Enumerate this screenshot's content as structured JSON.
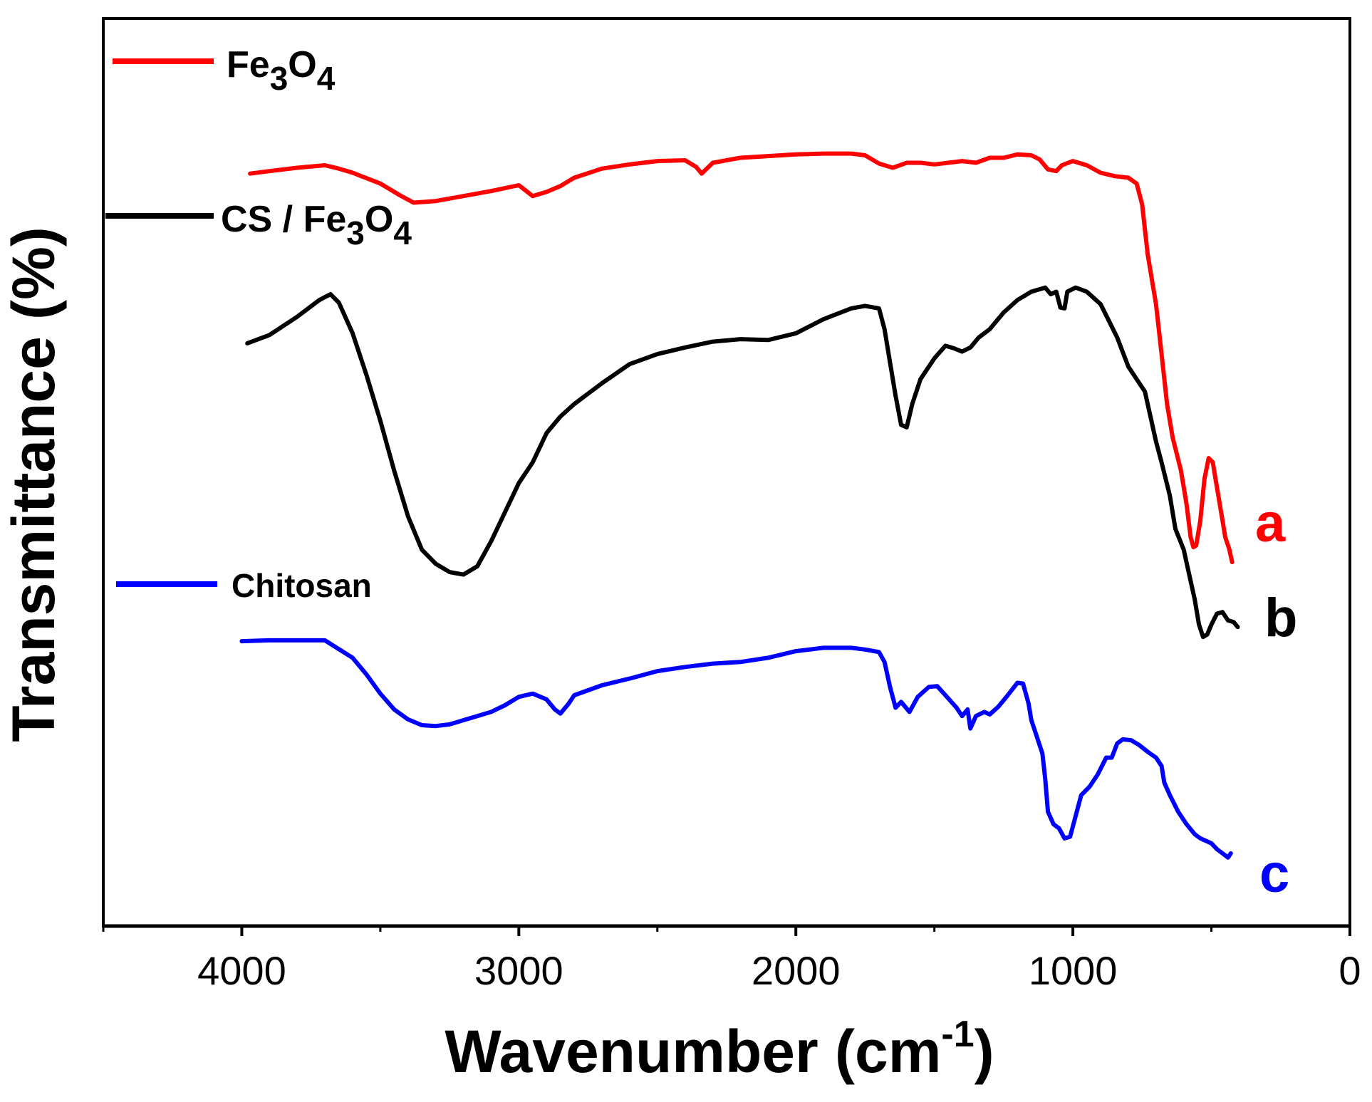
{
  "chart_data": {
    "type": "line",
    "title": "",
    "xlabel": {
      "main": "Wavenumber (cm",
      "sup": "-1",
      "end": ")"
    },
    "ylabel": "Transmittance (%)",
    "xlim": [
      4500,
      0
    ],
    "ylim": [
      0,
      100
    ],
    "x_ticks": [
      4000,
      3000,
      2000,
      1000,
      0
    ],
    "x_tick_labels": [
      "4000",
      "3000",
      "2000",
      "1000",
      "0"
    ],
    "y_ticks_shown": false,
    "series": [
      {
        "name": "Fe3O4",
        "legend": {
          "base1": "Fe",
          "sub1": "3",
          "base2": "O",
          "sub2": "4"
        },
        "tag": "a",
        "color": "#ff0000",
        "points": [
          [
            3970,
            87.7
          ],
          [
            3900,
            88.0
          ],
          [
            3800,
            88.4
          ],
          [
            3700,
            88.7
          ],
          [
            3650,
            88.3
          ],
          [
            3600,
            87.8
          ],
          [
            3500,
            86.5
          ],
          [
            3430,
            85.1
          ],
          [
            3380,
            84.2
          ],
          [
            3300,
            84.4
          ],
          [
            3200,
            85.0
          ],
          [
            3100,
            85.6
          ],
          [
            3000,
            86.3
          ],
          [
            2950,
            85.0
          ],
          [
            2900,
            85.5
          ],
          [
            2850,
            86.2
          ],
          [
            2800,
            87.2
          ],
          [
            2700,
            88.3
          ],
          [
            2600,
            88.8
          ],
          [
            2500,
            89.2
          ],
          [
            2400,
            89.3
          ],
          [
            2360,
            88.5
          ],
          [
            2340,
            87.7
          ],
          [
            2300,
            89.0
          ],
          [
            2200,
            89.6
          ],
          [
            2100,
            89.8
          ],
          [
            2000,
            90.0
          ],
          [
            1900,
            90.1
          ],
          [
            1800,
            90.1
          ],
          [
            1750,
            89.9
          ],
          [
            1700,
            88.9
          ],
          [
            1650,
            88.4
          ],
          [
            1600,
            89.0
          ],
          [
            1550,
            89.0
          ],
          [
            1500,
            88.8
          ],
          [
            1450,
            89.0
          ],
          [
            1400,
            89.2
          ],
          [
            1350,
            89.0
          ],
          [
            1300,
            89.6
          ],
          [
            1250,
            89.6
          ],
          [
            1200,
            90.0
          ],
          [
            1150,
            89.9
          ],
          [
            1120,
            89.4
          ],
          [
            1090,
            88.2
          ],
          [
            1060,
            88.0
          ],
          [
            1040,
            88.7
          ],
          [
            1000,
            89.2
          ],
          [
            950,
            88.7
          ],
          [
            900,
            87.8
          ],
          [
            850,
            87.4
          ],
          [
            800,
            87.2
          ],
          [
            770,
            86.5
          ],
          [
            750,
            84.0
          ],
          [
            730,
            78.0
          ],
          [
            700,
            72.0
          ],
          [
            680,
            66.0
          ],
          [
            660,
            60.0
          ],
          [
            640,
            56.0
          ],
          [
            610,
            52.0
          ],
          [
            590,
            48.0
          ],
          [
            575,
            44.0
          ],
          [
            565,
            42.8
          ],
          [
            555,
            43.0
          ],
          [
            540,
            46.0
          ],
          [
            525,
            51.0
          ],
          [
            510,
            53.5
          ],
          [
            495,
            53.0
          ],
          [
            480,
            50.0
          ],
          [
            465,
            47.0
          ],
          [
            450,
            44.0
          ],
          [
            435,
            42.5
          ],
          [
            425,
            41.0
          ]
        ]
      },
      {
        "name": "CS / Fe3O4",
        "legend": {
          "pre": "CS / ",
          "base1": "Fe",
          "sub1": "3",
          "base2": "O",
          "sub2": "4"
        },
        "tag": "b",
        "color": "#000000",
        "points": [
          [
            3980,
            67.3
          ],
          [
            3900,
            68.3
          ],
          [
            3800,
            70.5
          ],
          [
            3720,
            72.5
          ],
          [
            3680,
            73.2
          ],
          [
            3650,
            72.2
          ],
          [
            3600,
            68.5
          ],
          [
            3550,
            63.5
          ],
          [
            3500,
            58.0
          ],
          [
            3450,
            52.0
          ],
          [
            3400,
            46.5
          ],
          [
            3350,
            42.5
          ],
          [
            3300,
            40.8
          ],
          [
            3250,
            39.8
          ],
          [
            3200,
            39.5
          ],
          [
            3150,
            40.5
          ],
          [
            3100,
            43.5
          ],
          [
            3050,
            47.0
          ],
          [
            3000,
            50.5
          ],
          [
            2950,
            53.0
          ],
          [
            2900,
            56.5
          ],
          [
            2850,
            58.5
          ],
          [
            2800,
            60.0
          ],
          [
            2700,
            62.5
          ],
          [
            2600,
            64.8
          ],
          [
            2500,
            66.0
          ],
          [
            2400,
            66.8
          ],
          [
            2300,
            67.5
          ],
          [
            2200,
            67.8
          ],
          [
            2100,
            67.7
          ],
          [
            2000,
            68.5
          ],
          [
            1900,
            70.2
          ],
          [
            1800,
            71.5
          ],
          [
            1750,
            71.8
          ],
          [
            1700,
            71.5
          ],
          [
            1680,
            69.0
          ],
          [
            1660,
            65.0
          ],
          [
            1640,
            61.0
          ],
          [
            1620,
            57.5
          ],
          [
            1600,
            57.2
          ],
          [
            1580,
            60.0
          ],
          [
            1550,
            63.0
          ],
          [
            1500,
            65.5
          ],
          [
            1460,
            67.0
          ],
          [
            1430,
            66.7
          ],
          [
            1400,
            66.3
          ],
          [
            1370,
            66.8
          ],
          [
            1340,
            68.0
          ],
          [
            1300,
            69.0
          ],
          [
            1250,
            71.0
          ],
          [
            1200,
            72.5
          ],
          [
            1150,
            73.5
          ],
          [
            1100,
            74.0
          ],
          [
            1080,
            73.2
          ],
          [
            1060,
            73.5
          ],
          [
            1045,
            71.6
          ],
          [
            1030,
            71.5
          ],
          [
            1020,
            73.5
          ],
          [
            990,
            74.0
          ],
          [
            950,
            73.5
          ],
          [
            900,
            72.0
          ],
          [
            870,
            70.0
          ],
          [
            840,
            68.0
          ],
          [
            800,
            64.5
          ],
          [
            760,
            62.5
          ],
          [
            740,
            61.5
          ],
          [
            720,
            58.5
          ],
          [
            700,
            55.5
          ],
          [
            680,
            53.0
          ],
          [
            650,
            49.0
          ],
          [
            630,
            45.0
          ],
          [
            600,
            42.5
          ],
          [
            580,
            39.5
          ],
          [
            560,
            36.5
          ],
          [
            545,
            33.5
          ],
          [
            530,
            32.0
          ],
          [
            515,
            32.3
          ],
          [
            500,
            33.5
          ],
          [
            480,
            34.8
          ],
          [
            460,
            35.0
          ],
          [
            440,
            34.0
          ],
          [
            420,
            33.8
          ],
          [
            405,
            33.2
          ]
        ]
      },
      {
        "name": "Chitosan",
        "legend": {
          "pre": "Chitosan"
        },
        "tag": "c",
        "color": "#0000ff",
        "points": [
          [
            4000,
            31.5
          ],
          [
            3900,
            31.6
          ],
          [
            3800,
            31.6
          ],
          [
            3700,
            31.6
          ],
          [
            3600,
            29.5
          ],
          [
            3550,
            27.5
          ],
          [
            3500,
            25.2
          ],
          [
            3450,
            23.3
          ],
          [
            3400,
            22.1
          ],
          [
            3350,
            21.4
          ],
          [
            3300,
            21.3
          ],
          [
            3250,
            21.5
          ],
          [
            3200,
            22.0
          ],
          [
            3150,
            22.5
          ],
          [
            3100,
            23.0
          ],
          [
            3050,
            23.8
          ],
          [
            3000,
            24.8
          ],
          [
            2950,
            25.2
          ],
          [
            2900,
            24.5
          ],
          [
            2870,
            23.3
          ],
          [
            2850,
            22.8
          ],
          [
            2820,
            24.0
          ],
          [
            2800,
            25.0
          ],
          [
            2700,
            26.2
          ],
          [
            2600,
            27.0
          ],
          [
            2500,
            27.9
          ],
          [
            2400,
            28.4
          ],
          [
            2300,
            28.8
          ],
          [
            2200,
            29.0
          ],
          [
            2100,
            29.5
          ],
          [
            2000,
            30.3
          ],
          [
            1900,
            30.7
          ],
          [
            1800,
            30.7
          ],
          [
            1750,
            30.5
          ],
          [
            1700,
            30.2
          ],
          [
            1680,
            29.0
          ],
          [
            1660,
            26.0
          ],
          [
            1640,
            23.5
          ],
          [
            1620,
            24.2
          ],
          [
            1590,
            23.0
          ],
          [
            1560,
            24.8
          ],
          [
            1520,
            26.0
          ],
          [
            1490,
            26.1
          ],
          [
            1460,
            25.0
          ],
          [
            1420,
            23.5
          ],
          [
            1400,
            22.5
          ],
          [
            1380,
            23.3
          ],
          [
            1370,
            21.0
          ],
          [
            1350,
            22.5
          ],
          [
            1320,
            23.0
          ],
          [
            1300,
            22.7
          ],
          [
            1270,
            23.6
          ],
          [
            1240,
            24.8
          ],
          [
            1200,
            26.5
          ],
          [
            1180,
            26.4
          ],
          [
            1160,
            24.0
          ],
          [
            1150,
            22.0
          ],
          [
            1130,
            20.0
          ],
          [
            1110,
            18.0
          ],
          [
            1100,
            15.0
          ],
          [
            1090,
            11.0
          ],
          [
            1070,
            9.5
          ],
          [
            1050,
            9.0
          ],
          [
            1030,
            7.8
          ],
          [
            1010,
            8.0
          ],
          [
            990,
            10.5
          ],
          [
            970,
            13.0
          ],
          [
            940,
            14.0
          ],
          [
            910,
            15.5
          ],
          [
            880,
            17.5
          ],
          [
            860,
            17.5
          ],
          [
            840,
            19.2
          ],
          [
            820,
            19.7
          ],
          [
            790,
            19.6
          ],
          [
            760,
            19.0
          ],
          [
            730,
            18.2
          ],
          [
            700,
            17.5
          ],
          [
            680,
            16.5
          ],
          [
            670,
            14.5
          ],
          [
            650,
            13.0
          ],
          [
            620,
            11.0
          ],
          [
            590,
            9.5
          ],
          [
            560,
            8.3
          ],
          [
            540,
            7.8
          ],
          [
            520,
            7.5
          ],
          [
            500,
            7.2
          ],
          [
            480,
            6.5
          ],
          [
            460,
            6.0
          ],
          [
            440,
            5.5
          ],
          [
            430,
            6.0
          ]
        ]
      }
    ]
  }
}
